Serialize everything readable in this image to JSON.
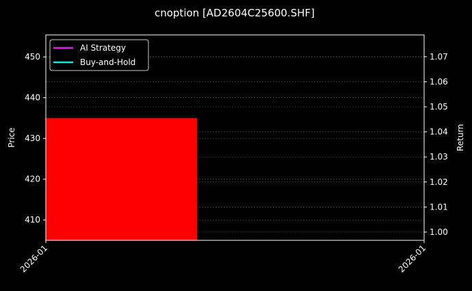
{
  "chart_data": {
    "type": "bar",
    "title": "cnoption [AD2604C25600.SHF]",
    "xlabel": "",
    "ylabel": "Price",
    "y2label": "Return",
    "x_tick_labels": [
      "2026-01",
      "2026-01"
    ],
    "ylim": [
      405.0,
      455.4
    ],
    "y_ticks": [
      410,
      420,
      430,
      440,
      450
    ],
    "y2lim": [
      0.9967,
      1.0787
    ],
    "y2_ticks": [
      "1.00",
      "1.01",
      "1.02",
      "1.03",
      "1.04",
      "1.05",
      "1.06",
      "1.07"
    ],
    "bars": [
      {
        "x_start_fraction": 0.0,
        "x_end_fraction": 0.4,
        "value": 435.0,
        "color": "#ff0000"
      }
    ],
    "series": [
      {
        "name": "AI Strategy",
        "color": "#e020e0",
        "values": []
      },
      {
        "name": "Buy-and-Hold",
        "color": "#20e0e0",
        "values": []
      }
    ],
    "legend_position": "top-left",
    "grid": true,
    "background": "#000000"
  }
}
